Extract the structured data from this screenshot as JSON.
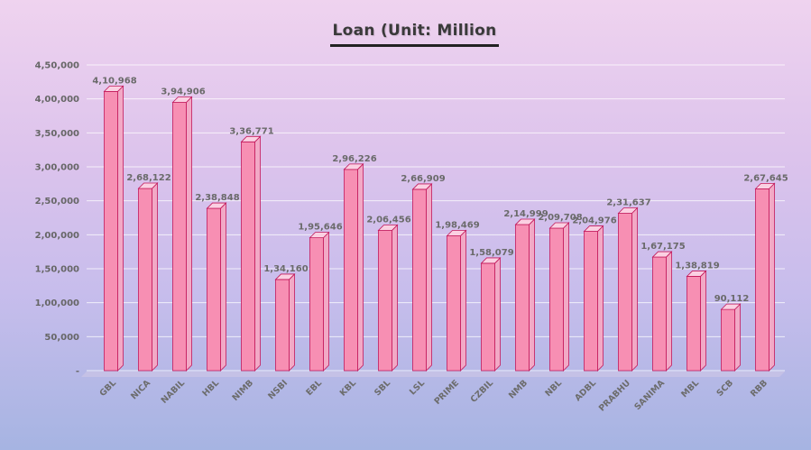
{
  "chart_data": {
    "type": "bar",
    "title": "Loan (Unit: Million",
    "xlabel": "",
    "ylabel": "",
    "ylim": [
      0,
      450000
    ],
    "yticks": [
      0,
      50000,
      100000,
      150000,
      200000,
      250000,
      300000,
      350000,
      400000,
      450000
    ],
    "ytick_labels": [
      "-",
      "50,000",
      "1,00,000",
      "1,50,000",
      "2,00,000",
      "2,50,000",
      "3,00,000",
      "3,50,000",
      "4,00,000",
      "4,50,000"
    ],
    "grid": true,
    "legend": "none",
    "bar_color": "#f78fb3",
    "bar_edge_color": "#c2185b",
    "categories": [
      "GBL",
      "NICA",
      "NABIL",
      "HBL",
      "NIMB",
      "NSBI",
      "EBL",
      "KBL",
      "SBL",
      "LSL",
      "PRIME",
      "CZBIL",
      "NMB",
      "NBL",
      "ADBL",
      "PRABHU",
      "SANIMA",
      "MBL",
      "SCB",
      "RBB"
    ],
    "values": [
      410968,
      268122,
      394906,
      238848,
      336771,
      134160,
      195646,
      296226,
      206456,
      266909,
      198469,
      158079,
      214999,
      209708,
      204976,
      231637,
      167175,
      138819,
      90112,
      267645
    ],
    "value_labels": [
      "4,10,968",
      "2,68,122",
      "3,94,906",
      "2,38,848",
      "3,36,771",
      "1,34,160",
      "1,95,646",
      "2,96,226",
      "2,06,456",
      "2,66,909",
      "1,98,469",
      "1,58,079",
      "2,14,999",
      "2,09,708",
      "2,04,976",
      "2,31,637",
      "1,67,175",
      "1,38,819",
      "90,112",
      "2,67,645"
    ]
  }
}
